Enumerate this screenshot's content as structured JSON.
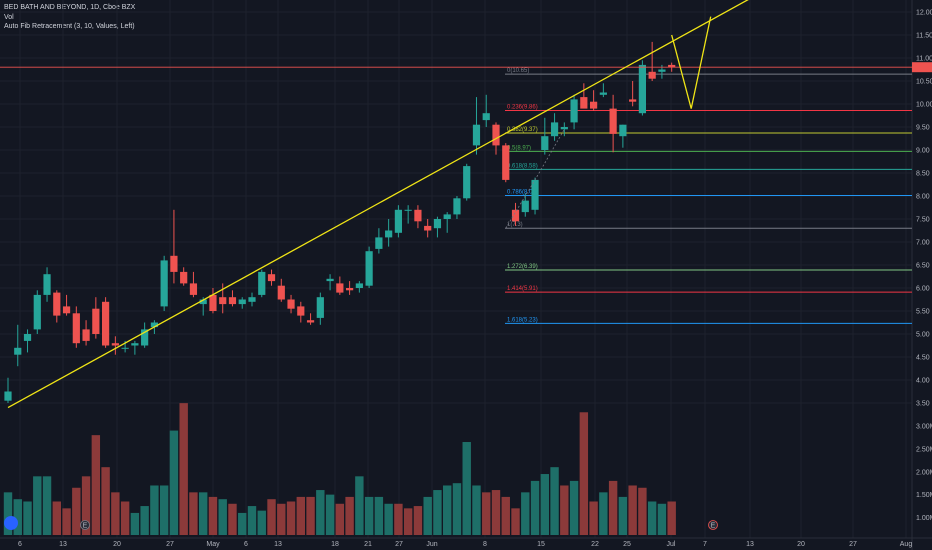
{
  "header": {
    "title": "BED BATH AND BEYOND, 1D, Cboe BZX",
    "vol_label": "Vol",
    "indicator": "Auto Fib Retracement (3, 10, Values, Left)"
  },
  "colors": {
    "background": "#131722",
    "up": "#26a69a",
    "down": "#ef5350",
    "vol_up": "#1e6f68",
    "vol_down": "#8c3a3a",
    "trendline": "#f0e516",
    "grid": "#1e222d",
    "price_line": "#ef5350"
  },
  "price_axis": {
    "ticks": [
      "12.00",
      "11.50",
      "11.00",
      "10.50",
      "10.00",
      "9.50",
      "9.00",
      "8.50",
      "8.00",
      "7.50",
      "7.00",
      "6.50",
      "6.00",
      "5.50",
      "5.00",
      "4.50",
      "4.00",
      "3.50"
    ]
  },
  "volume_axis": {
    "ticks": [
      "3.00M",
      "2.50M",
      "2.00M",
      "1.50M",
      "1.00M"
    ]
  },
  "time_axis": {
    "ticks": [
      "6",
      "13",
      "20",
      "27",
      "May",
      "6",
      "13",
      "18",
      "21",
      "27",
      "Jun",
      "8",
      "15",
      "22",
      "25",
      "Jul",
      "7",
      "13",
      "20",
      "27",
      "Aug"
    ]
  },
  "markers": {
    "earnings_1": "E",
    "earnings_2": "E"
  },
  "chart_data": {
    "type": "candlestick",
    "symbol": "BED BATH AND BEYOND",
    "interval": "1D",
    "exchange": "Cboe BZX",
    "ohlc": [
      {
        "o": 3.55,
        "h": 4.05,
        "l": 3.5,
        "c": 3.75
      },
      {
        "o": 4.55,
        "h": 5.2,
        "l": 4.3,
        "c": 4.7
      },
      {
        "o": 4.85,
        "h": 5.1,
        "l": 4.6,
        "c": 5.0
      },
      {
        "o": 5.1,
        "h": 5.95,
        "l": 5.0,
        "c": 5.85
      },
      {
        "o": 5.85,
        "h": 6.45,
        "l": 5.7,
        "c": 6.3
      },
      {
        "o": 5.9,
        "h": 5.95,
        "l": 5.25,
        "c": 5.4
      },
      {
        "o": 5.6,
        "h": 5.85,
        "l": 5.4,
        "c": 5.45
      },
      {
        "o": 5.45,
        "h": 5.6,
        "l": 4.7,
        "c": 4.8
      },
      {
        "o": 5.1,
        "h": 5.3,
        "l": 4.75,
        "c": 4.85
      },
      {
        "o": 5.55,
        "h": 5.8,
        "l": 4.9,
        "c": 5.0
      },
      {
        "o": 5.7,
        "h": 5.8,
        "l": 4.7,
        "c": 4.75
      },
      {
        "o": 4.8,
        "h": 4.95,
        "l": 4.55,
        "c": 4.75
      },
      {
        "o": 4.7,
        "h": 4.85,
        "l": 4.6,
        "c": 4.7
      },
      {
        "o": 4.75,
        "h": 4.85,
        "l": 4.55,
        "c": 4.8
      },
      {
        "o": 4.75,
        "h": 5.25,
        "l": 4.7,
        "c": 5.1
      },
      {
        "o": 5.15,
        "h": 5.3,
        "l": 5.0,
        "c": 5.25
      },
      {
        "o": 5.6,
        "h": 6.7,
        "l": 5.5,
        "c": 6.6
      },
      {
        "o": 6.7,
        "h": 7.7,
        "l": 6.1,
        "c": 6.35
      },
      {
        "o": 6.35,
        "h": 6.45,
        "l": 6.05,
        "c": 6.1
      },
      {
        "o": 6.1,
        "h": 6.35,
        "l": 5.8,
        "c": 5.85
      },
      {
        "o": 5.65,
        "h": 5.8,
        "l": 5.4,
        "c": 5.75
      },
      {
        "o": 5.85,
        "h": 6.0,
        "l": 5.45,
        "c": 5.5
      },
      {
        "o": 5.8,
        "h": 6.1,
        "l": 5.45,
        "c": 5.65
      },
      {
        "o": 5.8,
        "h": 5.95,
        "l": 5.6,
        "c": 5.65
      },
      {
        "o": 5.65,
        "h": 5.8,
        "l": 5.55,
        "c": 5.75
      },
      {
        "o": 5.7,
        "h": 5.9,
        "l": 5.6,
        "c": 5.8
      },
      {
        "o": 5.85,
        "h": 6.4,
        "l": 5.8,
        "c": 6.35
      },
      {
        "o": 6.3,
        "h": 6.4,
        "l": 6.05,
        "c": 6.15
      },
      {
        "o": 6.05,
        "h": 6.2,
        "l": 5.7,
        "c": 5.75
      },
      {
        "o": 5.75,
        "h": 5.85,
        "l": 5.45,
        "c": 5.55
      },
      {
        "o": 5.6,
        "h": 5.7,
        "l": 5.25,
        "c": 5.4
      },
      {
        "o": 5.3,
        "h": 5.45,
        "l": 5.2,
        "c": 5.25
      },
      {
        "o": 5.35,
        "h": 5.9,
        "l": 5.2,
        "c": 5.8
      },
      {
        "o": 6.15,
        "h": 6.3,
        "l": 5.95,
        "c": 6.2
      },
      {
        "o": 6.1,
        "h": 6.25,
        "l": 5.85,
        "c": 5.9
      },
      {
        "o": 6.0,
        "h": 6.15,
        "l": 5.85,
        "c": 5.95
      },
      {
        "o": 6.0,
        "h": 6.15,
        "l": 5.9,
        "c": 6.1
      },
      {
        "o": 6.05,
        "h": 6.9,
        "l": 6.0,
        "c": 6.8
      },
      {
        "o": 6.85,
        "h": 7.3,
        "l": 6.75,
        "c": 7.1
      },
      {
        "o": 7.1,
        "h": 7.5,
        "l": 6.9,
        "c": 7.25
      },
      {
        "o": 7.2,
        "h": 7.8,
        "l": 7.1,
        "c": 7.7
      },
      {
        "o": 7.7,
        "h": 7.8,
        "l": 7.4,
        "c": 7.7
      },
      {
        "o": 7.7,
        "h": 7.8,
        "l": 7.3,
        "c": 7.45
      },
      {
        "o": 7.35,
        "h": 7.5,
        "l": 7.1,
        "c": 7.25
      },
      {
        "o": 7.3,
        "h": 7.55,
        "l": 7.1,
        "c": 7.5
      },
      {
        "o": 7.5,
        "h": 7.65,
        "l": 7.2,
        "c": 7.6
      },
      {
        "o": 7.6,
        "h": 8.0,
        "l": 7.5,
        "c": 7.95
      },
      {
        "o": 7.95,
        "h": 8.7,
        "l": 7.9,
        "c": 8.65
      },
      {
        "o": 9.1,
        "h": 10.15,
        "l": 8.9,
        "c": 9.55
      },
      {
        "o": 9.65,
        "h": 10.2,
        "l": 9.5,
        "c": 9.8
      },
      {
        "o": 9.55,
        "h": 9.6,
        "l": 8.9,
        "c": 9.1
      },
      {
        "o": 9.1,
        "h": 9.15,
        "l": 8.3,
        "c": 8.35
      },
      {
        "o": 7.7,
        "h": 7.85,
        "l": 7.35,
        "c": 7.45
      },
      {
        "o": 7.65,
        "h": 8.05,
        "l": 7.55,
        "c": 7.9
      },
      {
        "o": 7.7,
        "h": 8.4,
        "l": 7.6,
        "c": 8.35
      },
      {
        "o": 9.0,
        "h": 9.7,
        "l": 8.9,
        "c": 9.3
      },
      {
        "o": 9.3,
        "h": 9.8,
        "l": 9.2,
        "c": 9.6
      },
      {
        "o": 9.45,
        "h": 9.6,
        "l": 9.3,
        "c": 9.5
      },
      {
        "o": 9.6,
        "h": 10.2,
        "l": 9.45,
        "c": 10.1
      },
      {
        "o": 10.15,
        "h": 10.45,
        "l": 9.95,
        "c": 9.9
      },
      {
        "o": 10.05,
        "h": 10.3,
        "l": 9.85,
        "c": 9.9
      },
      {
        "o": 10.2,
        "h": 10.45,
        "l": 10.15,
        "c": 10.25
      },
      {
        "o": 9.9,
        "h": 10.2,
        "l": 8.95,
        "c": 9.35
      },
      {
        "o": 9.3,
        "h": 9.55,
        "l": 9.05,
        "c": 9.55
      },
      {
        "o": 10.1,
        "h": 10.5,
        "l": 9.95,
        "c": 10.05
      },
      {
        "o": 9.8,
        "h": 10.95,
        "l": 9.75,
        "c": 10.85
      },
      {
        "o": 10.7,
        "h": 11.35,
        "l": 10.5,
        "c": 10.55
      },
      {
        "o": 10.7,
        "h": 10.85,
        "l": 10.55,
        "c": 10.75
      },
      {
        "o": 10.85,
        "h": 10.9,
        "l": 10.7,
        "c": 10.8
      }
    ],
    "volume_millions": [
      1.55,
      1.4,
      1.35,
      1.9,
      1.9,
      1.35,
      1.2,
      1.65,
      1.9,
      2.8,
      2.1,
      1.55,
      1.35,
      1.1,
      1.25,
      1.7,
      1.7,
      2.9,
      3.5,
      1.55,
      1.55,
      1.45,
      1.4,
      1.3,
      1.1,
      1.25,
      1.15,
      1.4,
      1.3,
      1.35,
      1.45,
      1.45,
      1.6,
      1.5,
      1.3,
      1.45,
      1.9,
      1.45,
      1.45,
      1.3,
      1.3,
      1.2,
      1.25,
      1.45,
      1.6,
      1.7,
      1.75,
      2.65,
      1.7,
      1.55,
      1.6,
      1.45,
      1.2,
      1.55,
      1.8,
      1.95,
      2.1,
      1.7,
      1.8,
      3.3,
      1.35,
      1.55,
      1.8,
      1.45,
      1.7,
      1.65,
      1.35,
      1.3,
      1.35
    ],
    "volume_up": [
      true,
      true,
      true,
      true,
      true,
      false,
      false,
      false,
      false,
      false,
      false,
      false,
      false,
      true,
      true,
      true,
      true,
      true,
      false,
      false,
      true,
      false,
      true,
      false,
      true,
      true,
      true,
      false,
      false,
      false,
      false,
      false,
      true,
      true,
      false,
      false,
      true,
      true,
      true,
      true,
      false,
      false,
      false,
      true,
      true,
      true,
      true,
      true,
      true,
      false,
      false,
      false,
      false,
      true,
      true,
      true,
      true,
      false,
      true,
      false,
      false,
      true,
      false,
      true,
      false,
      false,
      true,
      true,
      false
    ],
    "fib_levels": [
      {
        "label": "0(10.65)",
        "price": 10.65,
        "color": "#787b86"
      },
      {
        "label": "0.236(9.86)",
        "price": 9.86,
        "color": "#f23645"
      },
      {
        "label": "0.382(9.37)",
        "price": 9.37,
        "color": "#c0ca33"
      },
      {
        "label": "0.5(8.97)",
        "price": 8.97,
        "color": "#4caf50"
      },
      {
        "label": "0.618(8.58)",
        "price": 8.58,
        "color": "#26a69a"
      },
      {
        "label": "0.786(8.01)",
        "price": 8.01,
        "color": "#2196f3"
      },
      {
        "label": "1(7.3)",
        "price": 7.3,
        "color": "#787b86"
      },
      {
        "label": "1.272(6.39)",
        "price": 6.39,
        "color": "#81c784"
      },
      {
        "label": "1.414(5.91)",
        "price": 5.91,
        "color": "#f23645"
      },
      {
        "label": "1.618(5.23)",
        "price": 5.23,
        "color": "#2196f3"
      }
    ],
    "current_price": 10.8,
    "trendline": {
      "from": [
        0,
        3.4
      ],
      "to": [
        72,
        12.3
      ]
    },
    "projection": [
      [
        68,
        11.5
      ],
      [
        70,
        9.9
      ],
      [
        72,
        11.9
      ]
    ],
    "price_range": [
      3.3,
      12.2
    ],
    "volume_range": [
      0,
      3.6
    ]
  }
}
